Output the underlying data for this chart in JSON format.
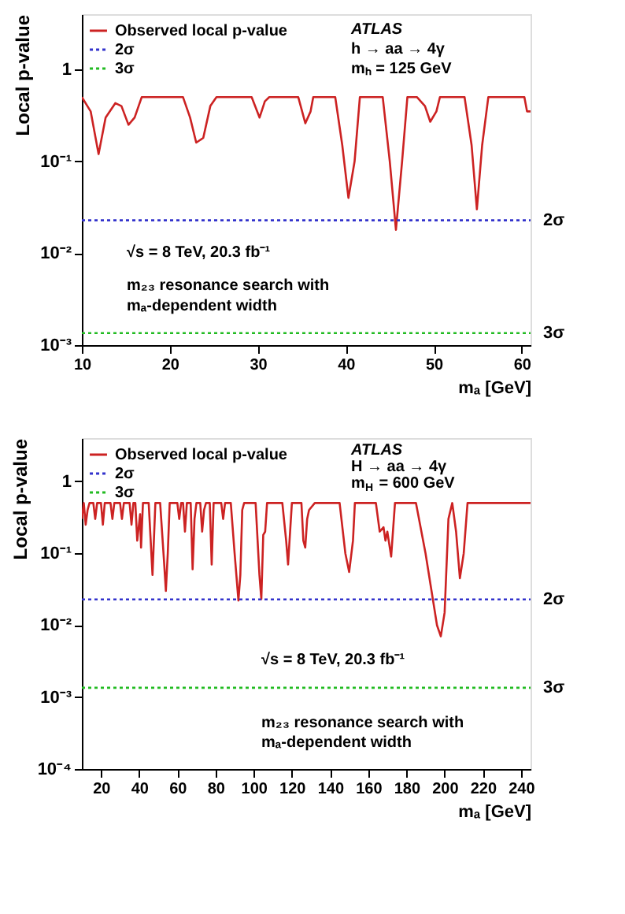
{
  "chart_data": [
    {
      "type": "line",
      "xlabel": "mₐ [GeV]",
      "ylabel": "Local p-value",
      "log": "y",
      "grid": false,
      "legend": "top left",
      "line_style": "solid",
      "marker": "none",
      "xlim": [
        10,
        61
      ],
      "xticks": [
        10,
        20,
        30,
        40,
        50,
        60
      ],
      "ylim": [
        0.001,
        4
      ],
      "yticks": [
        {
          "value": 0.001,
          "label": "10⁻³"
        },
        {
          "value": 0.01,
          "label": "10⁻²"
        },
        {
          "value": 0.1,
          "label": "10⁻¹"
        },
        1
      ],
      "series": [
        {
          "name": "Observed local p-value",
          "color": "#cc2222",
          "x": [
            10,
            11,
            11.9,
            12.7,
            13.8,
            14.5,
            15.3,
            16,
            16.8,
            21.5,
            22.3,
            23,
            23.8,
            24.6,
            25.3,
            29.3,
            30.2,
            30.8,
            31.3,
            34.6,
            35.4,
            36,
            36.3,
            38.8,
            39.6,
            40.3,
            41,
            41.6,
            44.2,
            45,
            45.7,
            46.4,
            47,
            48.1,
            49,
            49.6,
            50.3,
            50.7,
            53.5,
            54.3,
            54.9,
            55.5,
            56.2,
            60.3,
            60.6,
            61
          ],
          "values": [
            0.5,
            0.35,
            0.12,
            0.3,
            0.43,
            0.4,
            0.25,
            0.3,
            0.5,
            0.5,
            0.3,
            0.16,
            0.18,
            0.4,
            0.5,
            0.5,
            0.3,
            0.45,
            0.5,
            0.5,
            0.26,
            0.35,
            0.5,
            0.5,
            0.15,
            0.04,
            0.1,
            0.5,
            0.5,
            0.1,
            0.018,
            0.1,
            0.5,
            0.5,
            0.4,
            0.27,
            0.35,
            0.5,
            0.5,
            0.15,
            0.03,
            0.15,
            0.5,
            0.5,
            0.35,
            0.35
          ]
        }
      ],
      "ref_lines": [
        {
          "axis": "y",
          "value": 0.0228,
          "label": "2σ",
          "color": "#3333cc",
          "line_style": "dotted"
        },
        {
          "axis": "y",
          "value": 0.00135,
          "label": "3σ",
          "color": "#22bb22",
          "line_style": "dotted"
        }
      ],
      "annotations": [
        "ATLAS",
        "h → aa → 4γ",
        "mₕ = 125 GeV",
        "√s = 8 TeV, 20.3 fb⁻¹",
        "m₂₃ resonance search with",
        "mₐ-dependent width"
      ]
    },
    {
      "type": "line",
      "xlabel": "mₐ [GeV]",
      "ylabel": "Local p-value",
      "log": "y",
      "grid": false,
      "legend": "top left",
      "line_style": "solid",
      "marker": "none",
      "xlim": [
        10,
        245
      ],
      "xticks": [
        20,
        40,
        60,
        80,
        100,
        120,
        140,
        160,
        180,
        200,
        220,
        240
      ],
      "ylim": [
        0.0001,
        4
      ],
      "yticks": [
        {
          "value": 0.0001,
          "label": "10⁻⁴"
        },
        {
          "value": 0.001,
          "label": "10⁻³"
        },
        {
          "value": 0.01,
          "label": "10⁻²"
        },
        {
          "value": 0.1,
          "label": "10⁻¹"
        },
        1
      ],
      "series": [
        {
          "name": "Observed local p-value",
          "color": "#cc2222",
          "x": [
            10,
            11,
            12,
            13,
            14,
            16,
            17,
            18,
            20,
            21,
            22,
            25,
            26,
            27,
            30,
            31,
            32,
            35,
            36,
            37,
            38,
            39,
            40.5,
            41,
            42,
            45,
            47,
            48.5,
            51,
            53,
            54,
            55,
            56,
            60,
            61,
            62,
            63,
            64,
            65,
            67,
            68,
            69,
            70,
            72,
            73,
            74,
            75,
            77,
            78,
            79,
            83,
            84,
            85,
            88,
            90,
            92,
            93,
            94,
            95,
            101,
            103,
            104,
            105,
            106,
            107,
            115,
            117,
            118,
            120,
            125,
            126,
            127,
            128,
            129,
            132,
            145,
            148,
            150,
            152,
            153,
            164,
            166,
            168,
            169,
            170,
            172,
            174,
            185,
            190,
            196,
            198,
            200,
            202,
            204,
            206,
            208,
            210,
            212,
            245
          ],
          "values": [
            0.3,
            0.5,
            0.25,
            0.4,
            0.5,
            0.5,
            0.3,
            0.5,
            0.5,
            0.25,
            0.5,
            0.5,
            0.3,
            0.5,
            0.5,
            0.3,
            0.5,
            0.5,
            0.25,
            0.5,
            0.5,
            0.15,
            0.35,
            0.12,
            0.5,
            0.5,
            0.05,
            0.5,
            0.5,
            0.08,
            0.03,
            0.1,
            0.5,
            0.5,
            0.3,
            0.5,
            0.5,
            0.2,
            0.5,
            0.5,
            0.06,
            0.3,
            0.5,
            0.5,
            0.2,
            0.4,
            0.5,
            0.5,
            0.07,
            0.5,
            0.5,
            0.3,
            0.5,
            0.5,
            0.1,
            0.022,
            0.05,
            0.4,
            0.5,
            0.5,
            0.05,
            0.023,
            0.18,
            0.2,
            0.5,
            0.5,
            0.15,
            0.07,
            0.5,
            0.5,
            0.15,
            0.12,
            0.3,
            0.4,
            0.5,
            0.5,
            0.1,
            0.055,
            0.15,
            0.5,
            0.5,
            0.2,
            0.23,
            0.15,
            0.2,
            0.09,
            0.5,
            0.5,
            0.1,
            0.01,
            0.007,
            0.015,
            0.3,
            0.5,
            0.2,
            0.045,
            0.1,
            0.5,
            0.5
          ]
        }
      ],
      "ref_lines": [
        {
          "axis": "y",
          "value": 0.0228,
          "label": "2σ",
          "color": "#3333cc",
          "line_style": "dotted"
        },
        {
          "axis": "y",
          "value": 0.00135,
          "label": "3σ",
          "color": "#22bb22",
          "line_style": "dotted"
        }
      ],
      "annotations": [
        "ATLAS",
        "H → aa → 4γ",
        "m$_{H}$ = 600 GeV",
        "√s = 8 TeV, 20.3 fb⁻¹",
        "m₂₃ resonance search with",
        "mₐ-dependent width"
      ]
    }
  ]
}
